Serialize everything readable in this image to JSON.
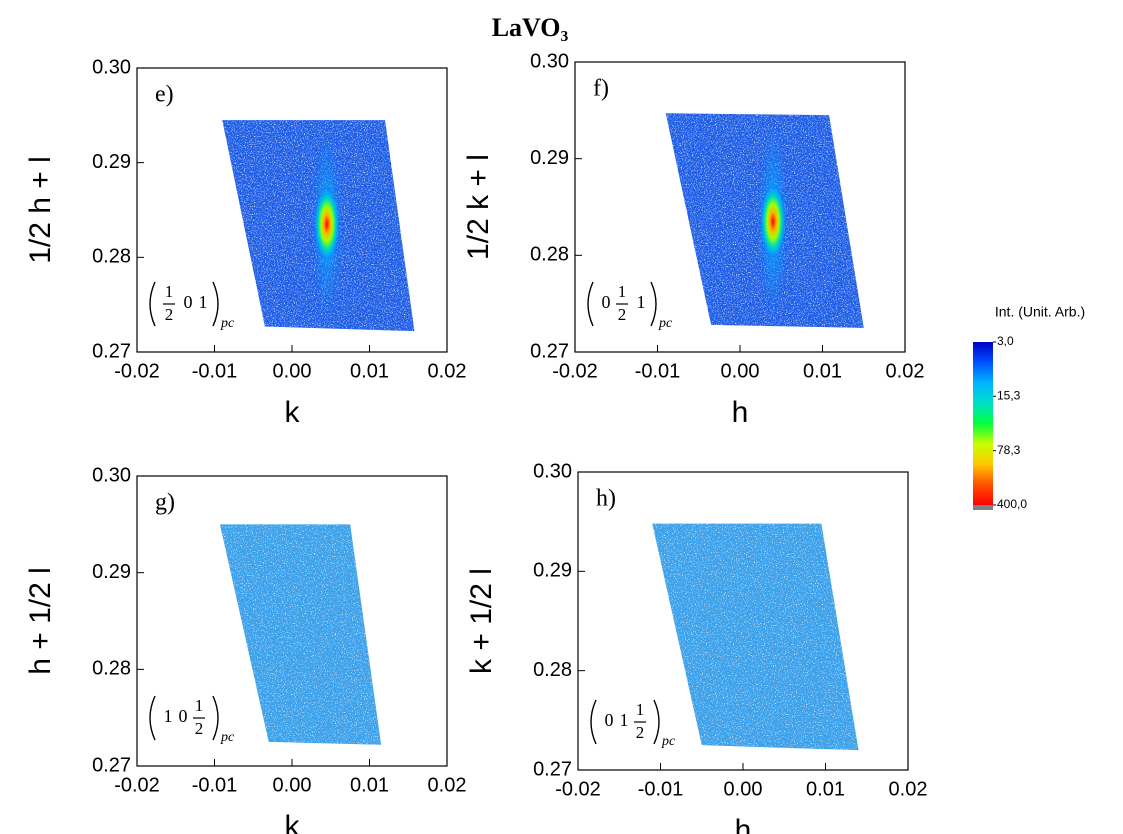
{
  "title": "LaVO₃",
  "chart_data": [
    {
      "type": "rsm",
      "panel_label": "e)",
      "xlabel": "k",
      "ylabel": "1/2 h + l",
      "xlim": [
        -0.02,
        0.02
      ],
      "ylim": [
        0.27,
        0.3
      ],
      "xticks": [
        -0.02,
        -0.01,
        {
          "value": 0,
          "label": "0.00"
        },
        0.01,
        0.02
      ],
      "yticks": [
        0.27,
        0.28,
        0.29,
        {
          "value": 0.3,
          "label": "0.30"
        }
      ],
      "color": "#1f5be6",
      "region": {
        "x": [
          -0.009,
          0.012,
          0.0158,
          -0.0035
        ],
        "y": [
          0.2945,
          0.2945,
          0.2722,
          0.2727
        ]
      },
      "peak": {
        "x": 0.0045,
        "y": 0.2835,
        "value": 400
      },
      "annotation": {
        "index": [
          {
            "num": "1",
            "den": "2"
          },
          "0",
          "1"
        ],
        "subscript": "pc"
      }
    },
    {
      "type": "rsm",
      "panel_label": "f)",
      "xlabel": "h",
      "ylabel": "1/2 k + l",
      "xlim": [
        -0.02,
        0.02
      ],
      "ylim": [
        0.27,
        0.3
      ],
      "xticks": [
        -0.02,
        -0.01,
        {
          "value": 0,
          "label": "0.00"
        },
        0.01,
        0.02
      ],
      "yticks": [
        0.27,
        0.28,
        0.29,
        {
          "value": 0.3,
          "label": "0.30"
        }
      ],
      "color": "#1f5be6",
      "region": {
        "x": [
          -0.009,
          0.0108,
          0.015,
          -0.0035
        ],
        "y": [
          0.2947,
          0.2945,
          0.2725,
          0.2728
        ]
      },
      "peak": {
        "x": 0.004,
        "y": 0.2835,
        "value": 400
      },
      "annotation": {
        "index": [
          "0",
          {
            "num": "1",
            "den": "2"
          },
          "1"
        ],
        "subscript": "pc"
      }
    },
    {
      "type": "rsm",
      "panel_label": "g)",
      "xlabel": "k",
      "ylabel": "h + 1/2 l",
      "xlim": [
        -0.02,
        0.02
      ],
      "ylim": [
        0.27,
        0.3
      ],
      "xticks": [
        -0.02,
        -0.01,
        {
          "value": 0,
          "label": "0.00"
        },
        0.01,
        0.02
      ],
      "yticks": [
        0.27,
        0.28,
        0.29,
        {
          "value": 0.3,
          "label": "0.30"
        }
      ],
      "color": "#3aa2ea",
      "region": {
        "x": [
          -0.0093,
          0.0075,
          0.0115,
          -0.003
        ],
        "y": [
          0.295,
          0.295,
          0.2722,
          0.2725
        ]
      },
      "annotation": {
        "index": [
          "1",
          "0",
          {
            "num": "1",
            "den": "2"
          }
        ],
        "subscript": "pc"
      }
    },
    {
      "type": "rsm",
      "panel_label": "h)",
      "xlabel": "h",
      "ylabel": "k + 1/2 l",
      "xlim": [
        -0.02,
        0.02
      ],
      "ylim": [
        0.27,
        0.3
      ],
      "xticks": [
        -0.02,
        -0.01,
        {
          "value": 0,
          "label": "0.00"
        },
        0.01,
        0.02
      ],
      "yticks": [
        0.27,
        0.28,
        0.29,
        {
          "value": 0.3,
          "label": "0.30"
        }
      ],
      "color": "#3aa2ea",
      "region": {
        "x": [
          -0.011,
          0.0095,
          0.014,
          -0.005
        ],
        "y": [
          0.2948,
          0.2948,
          0.272,
          0.2725
        ]
      },
      "annotation": {
        "index": [
          "0",
          "1",
          {
            "num": "1",
            "den": "2"
          }
        ],
        "subscript": "pc"
      }
    }
  ],
  "colorbar": {
    "label": "Int. (Unit. Arb.)",
    "log": true,
    "lim": [
      3,
      400
    ],
    "ticks": [
      {
        "value": 3.0,
        "label": "3,0"
      },
      {
        "value": 15.3,
        "label": "15,3"
      },
      {
        "value": 78.3,
        "label": "78,3"
      },
      {
        "value": 400.0,
        "label": "400,0"
      }
    ],
    "colors": [
      "#0000c8",
      "#0050ff",
      "#00b4ff",
      "#00e0c8",
      "#00ff40",
      "#c8ff00",
      "#ffc800",
      "#ff5000",
      "#ff0000"
    ],
    "over_color": "#808080"
  }
}
